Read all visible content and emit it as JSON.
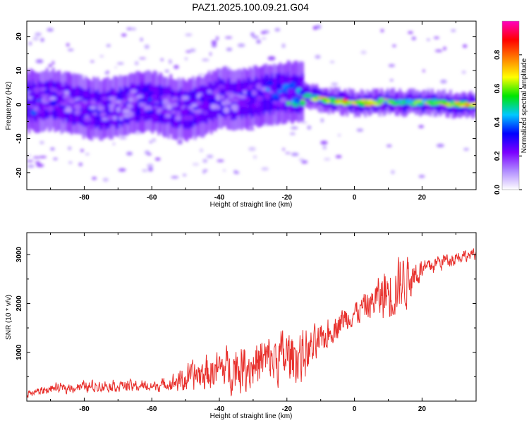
{
  "title": "PAZ1.2025.100.09.21.G04",
  "chart_data": [
    {
      "type": "heatmap",
      "xlabel": "Height of straight line (km)",
      "ylabel": "Frequency (Hz)",
      "xlim": [
        -97,
        36
      ],
      "ylim": [
        -25,
        24.5
      ],
      "xticks": [
        -80,
        -60,
        -40,
        -20,
        0,
        20
      ],
      "yticks": [
        -20,
        -10,
        0,
        10,
        20
      ],
      "colorbar": {
        "label": "Normalized spectral amplitude",
        "range": [
          0,
          1
        ],
        "ticks": [
          0.0,
          0.2,
          0.4,
          0.6,
          0.8
        ],
        "colors": [
          "#ffffff",
          "#b08cff",
          "#7a00ff",
          "#0000ff",
          "#00c8ff",
          "#00e600",
          "#ffff00",
          "#ff8000",
          "#ff0000",
          "#ff00c0"
        ]
      },
      "ridge": {
        "x": [
          -95,
          -90,
          -85,
          -80,
          -75,
          -70,
          -65,
          -60,
          -55,
          -50,
          -45,
          -40,
          -35,
          -30,
          -25,
          -20,
          -17,
          -15,
          -10,
          -5,
          0,
          5,
          10,
          15,
          20,
          25,
          30,
          35
        ],
        "frequency": [
          1,
          1.5,
          0.5,
          -1,
          -1.5,
          -1,
          1,
          1,
          -0.5,
          -1.5,
          -0.5,
          2,
          1.5,
          2,
          3,
          3.5,
          3.5,
          3,
          1.5,
          1,
          0.5,
          0.5,
          1,
          0.5,
          0.5,
          0.5,
          0,
          0
        ],
        "amplitude": [
          0.3,
          0.3,
          0.25,
          0.25,
          0.3,
          0.2,
          0.25,
          0.3,
          0.2,
          0.25,
          0.25,
          0.25,
          0.25,
          0.3,
          0.35,
          0.45,
          0.55,
          0.6,
          0.7,
          0.8,
          0.85,
          0.8,
          0.7,
          0.65,
          0.7,
          0.75,
          0.8,
          0.85
        ]
      }
    },
    {
      "type": "line",
      "xlabel": "Height of straight line (km)",
      "ylabel": "SNR (10 * v/v)",
      "xlim": [
        -97,
        36
      ],
      "ylim": [
        0,
        3450
      ],
      "xticks": [
        -80,
        -60,
        -40,
        -20,
        0,
        20
      ],
      "yticks": [
        1000,
        2000,
        3000
      ],
      "series": [
        {
          "color": "#e8302c",
          "x": [
            -97,
            -90,
            -80,
            -70,
            -60,
            -55,
            -50,
            -45,
            -40,
            -35,
            -30,
            -25,
            -20,
            -15,
            -10,
            -5,
            0,
            5,
            10,
            15,
            20,
            25,
            30,
            36
          ],
          "mean": [
            150,
            250,
            300,
            320,
            300,
            350,
            450,
            550,
            650,
            700,
            750,
            850,
            900,
            950,
            1200,
            1600,
            1800,
            2000,
            2250,
            2500,
            2700,
            2850,
            2950,
            3000
          ],
          "spread": [
            80,
            120,
            160,
            180,
            150,
            200,
            450,
            550,
            600,
            750,
            800,
            850,
            900,
            800,
            500,
            450,
            400,
            500,
            1000,
            900,
            300,
            250,
            200,
            150
          ]
        }
      ]
    }
  ]
}
